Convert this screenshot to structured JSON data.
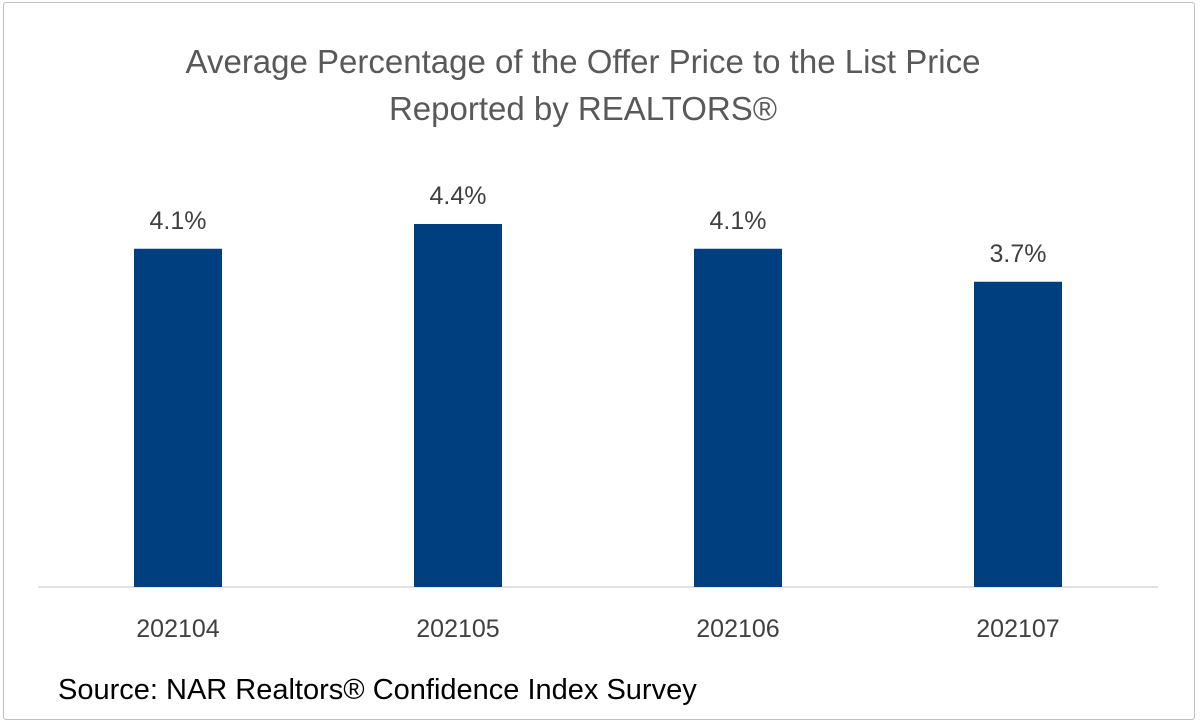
{
  "chart_data": {
    "type": "bar",
    "title_lines": [
      "Average Percentage of the Offer Price to the List Price",
      "Reported by REALTORS®"
    ],
    "categories": [
      "202104",
      "202105",
      "202106",
      "202107"
    ],
    "values": [
      4.1,
      4.4,
      4.1,
      3.7
    ],
    "value_labels": [
      "4.1%",
      "4.4%",
      "4.1%",
      "3.7%"
    ],
    "xlabel": "",
    "ylabel": "",
    "ylim": [
      0,
      5
    ],
    "grid": false,
    "legend": "none",
    "bar_color": "#003F7F",
    "axis_color": "#D9D9D9",
    "label_color": "#404040"
  },
  "source": "Source: NAR Realtors® Confidence Index Survey"
}
